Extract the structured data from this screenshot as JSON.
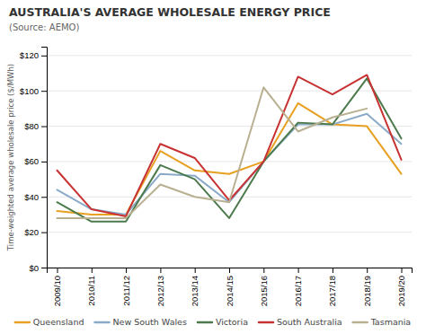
{
  "chart_data": {
    "type": "line",
    "title": "AUSTRALIA'S AVERAGE WHOLESALE ENERGY PRICE",
    "subtitle": "(Source: AEMO)",
    "y_label": "Time-weighted average wholesale price ($/MWh)",
    "categories": [
      "2009/10",
      "2010/11",
      "2011/12",
      "2012/13",
      "2013/14",
      "2014/15",
      "2015/16",
      "2016/17",
      "2017/18",
      "2018/19",
      "2019/20"
    ],
    "series": [
      {
        "name": "Queensland",
        "color": "#E8A020",
        "values": [
          32,
          30,
          30,
          66,
          55,
          53,
          60,
          93,
          81,
          80,
          53
        ]
      },
      {
        "name": "New South Wales",
        "color": "#8AAAC8",
        "values": [
          44,
          33,
          30,
          53,
          52,
          37,
          60,
          81,
          81,
          87,
          70
        ]
      },
      {
        "name": "Victoria",
        "color": "#4C7A4C",
        "values": [
          37,
          26,
          26,
          58,
          50,
          28,
          60,
          82,
          81,
          107,
          73
        ]
      },
      {
        "name": "South Australia",
        "color": "#C83232",
        "values": [
          55,
          33,
          29,
          70,
          62,
          38,
          60,
          108,
          98,
          109,
          61
        ]
      },
      {
        "name": "Tasmania",
        "color": "#B8B090",
        "values": [
          28,
          28,
          28,
          47,
          40,
          37,
          102,
          77,
          85,
          90,
          null
        ]
      }
    ],
    "ylim": [
      0,
      125
    ],
    "yticks": [
      {
        "value": 0,
        "label": "$0"
      },
      {
        "value": 20,
        "label": "$20"
      },
      {
        "value": 40,
        "label": "$40"
      },
      {
        "value": 60,
        "label": "$60"
      },
      {
        "value": 80,
        "label": "$80"
      },
      {
        "value": 100,
        "label": "$100"
      },
      {
        "value": 120,
        "label": "$120"
      }
    ],
    "grid": true,
    "legend": "bottom"
  }
}
